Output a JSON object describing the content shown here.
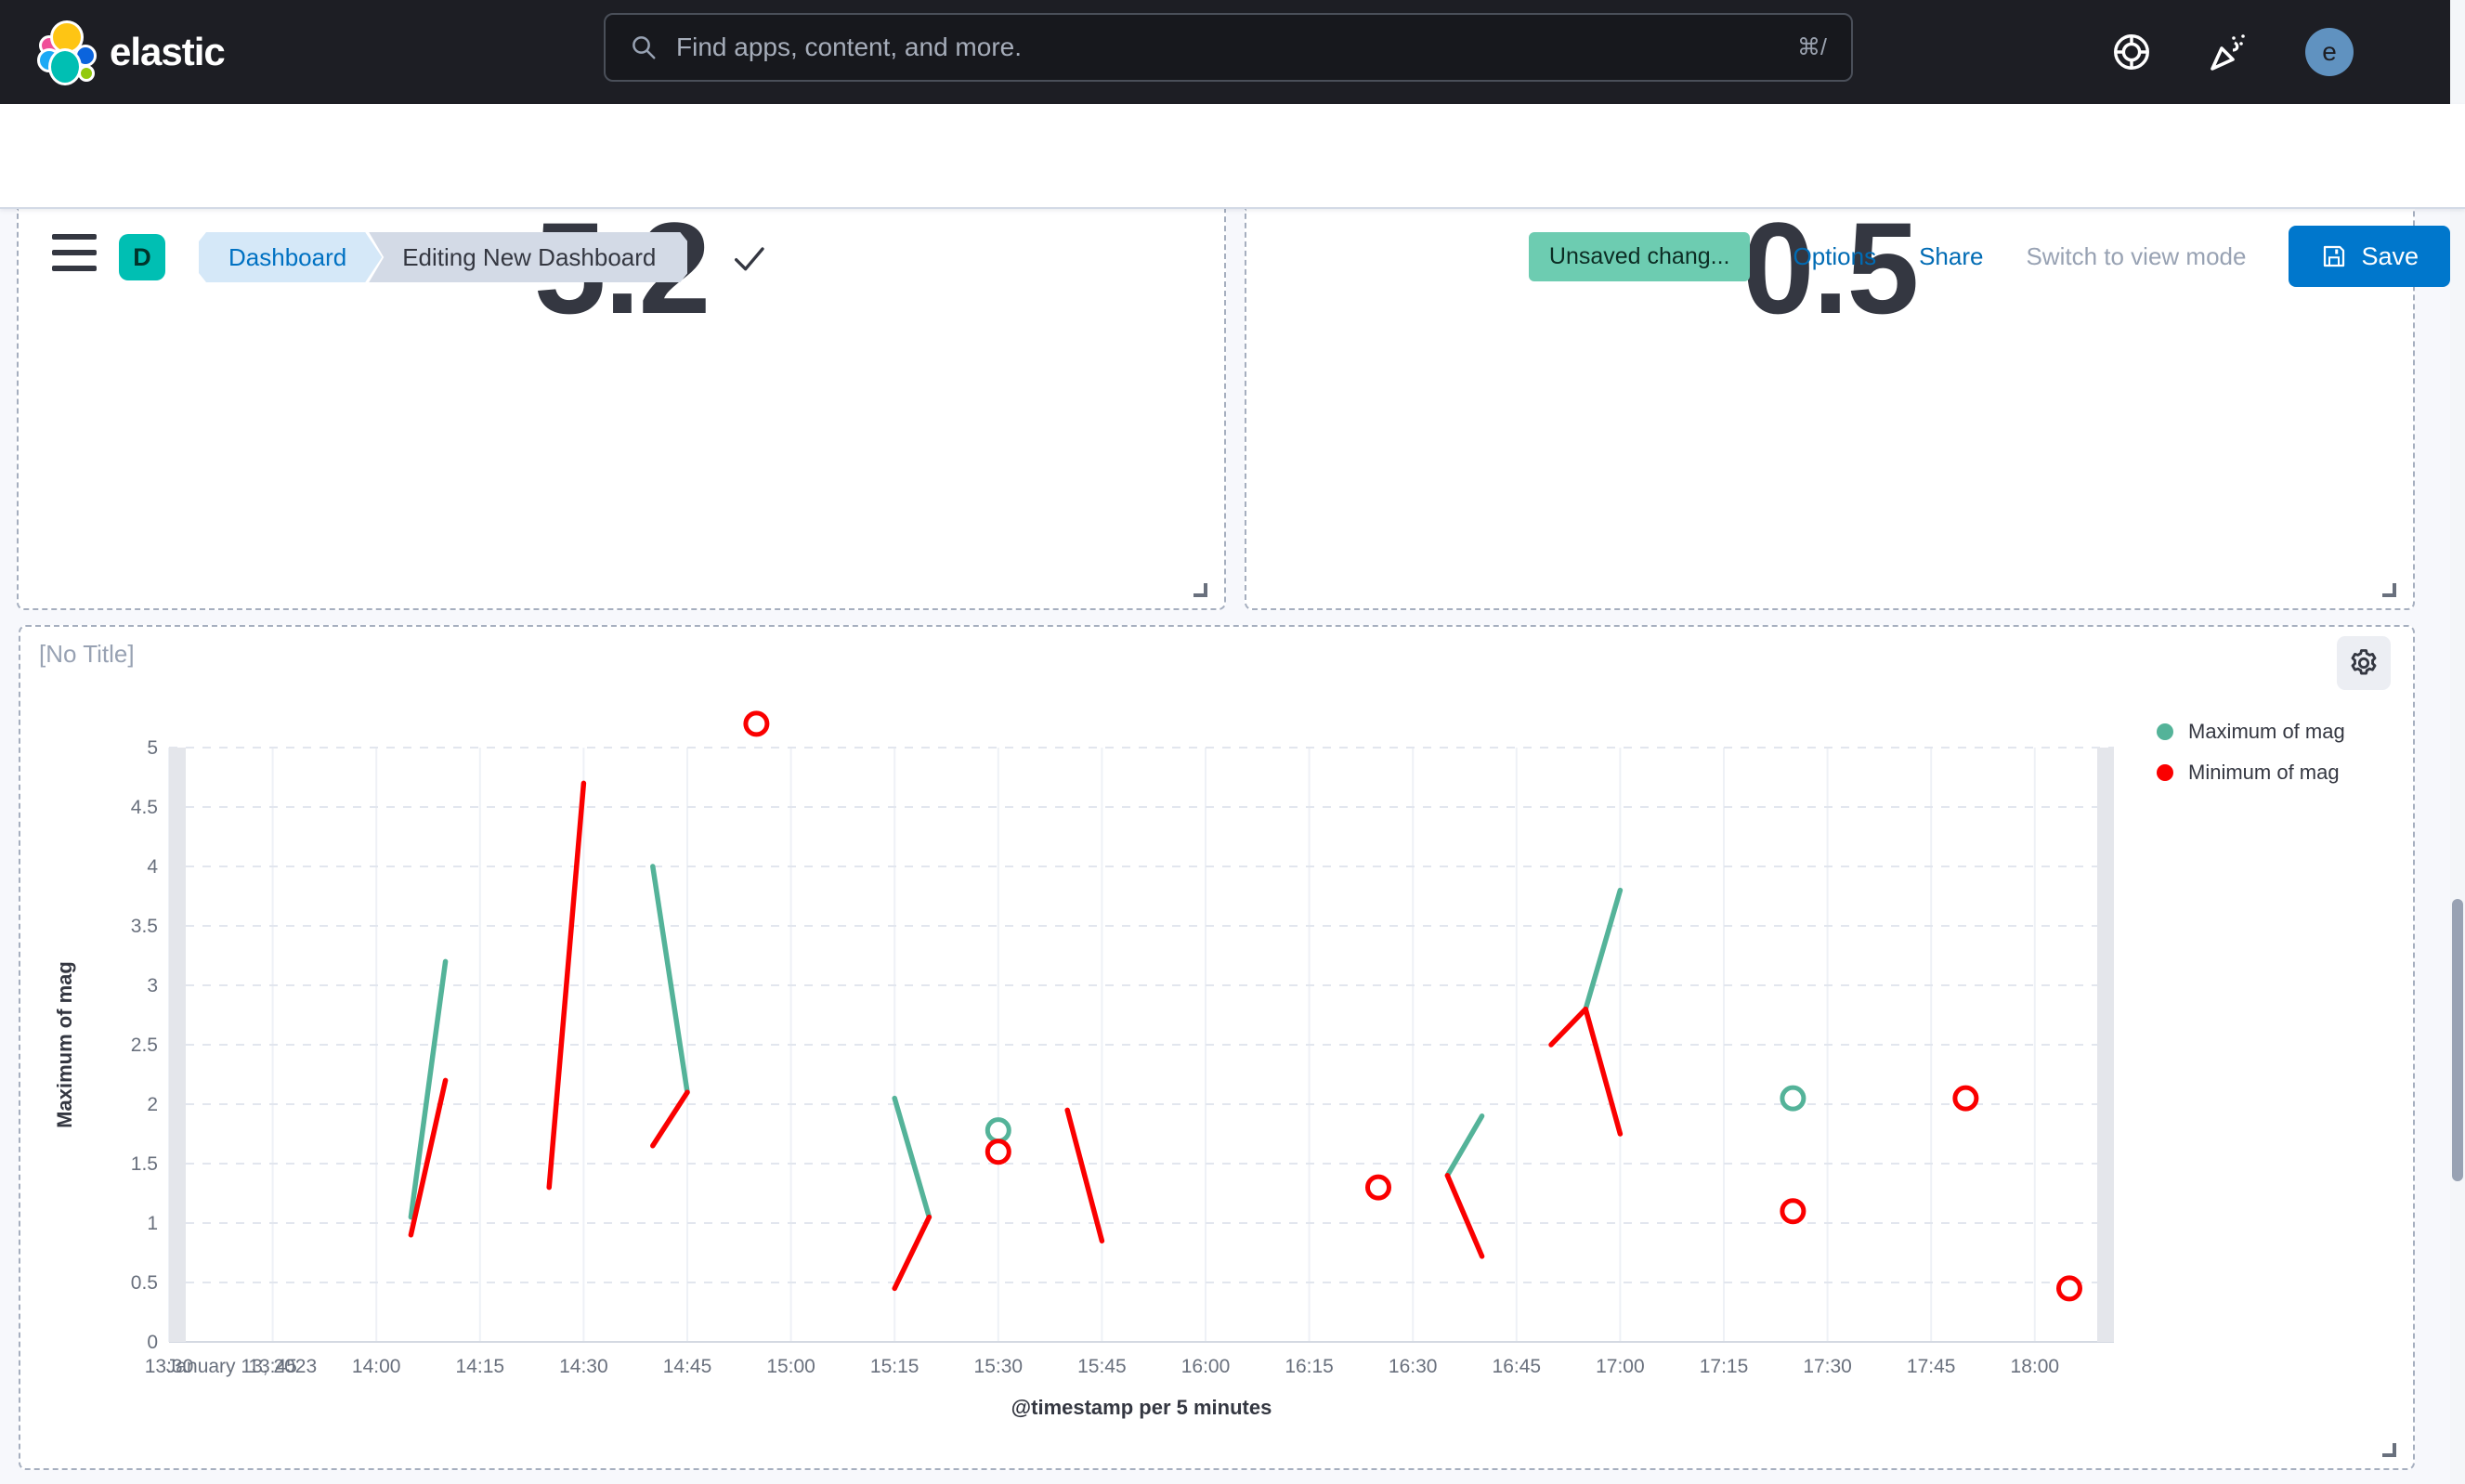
{
  "header": {
    "brand": "elastic",
    "search": {
      "placeholder": "Find apps, content, and more.",
      "shortcut": "⌘/"
    },
    "icons": [
      "help-icon",
      "news-icon"
    ],
    "avatar_initial": "e"
  },
  "toolbar": {
    "app_initial": "D",
    "breadcrumbs": [
      "Dashboard",
      "Editing New Dashboard"
    ],
    "unsaved_badge": "Unsaved chang...",
    "options_label": "Options",
    "share_label": "Share",
    "view_mode_label": "Switch to view mode",
    "save_label": "Save"
  },
  "panels": {
    "metric_left": {
      "value": "5.2"
    },
    "metric_right": {
      "value": "0.5"
    },
    "chart_title": "[No Title]"
  },
  "colors": {
    "series_max": "#54B399",
    "series_min": "#FA0000",
    "badge_bg": "#6DCCB1",
    "primary_button": "#0077CC",
    "axis_text": "#69707D",
    "dark_text": "#343741"
  },
  "chart_data": {
    "type": "line",
    "title": "[No Title]",
    "xlabel": "@timestamp per 5 minutes",
    "ylabel": "Maximum of mag",
    "ylim": [
      0,
      5
    ],
    "ytick_step": 0.5,
    "grid": "horizontal-dashed",
    "legend_position": "right",
    "x_date_label": "January 13, 2023",
    "x_tick_labels": [
      "13:30",
      "13:45",
      "14:00",
      "14:15",
      "14:30",
      "14:45",
      "15:00",
      "15:15",
      "15:30",
      "15:45",
      "16:00",
      "16:15",
      "16:30",
      "16:45",
      "17:00",
      "17:15",
      "17:30",
      "17:45",
      "18:00"
    ],
    "series": [
      {
        "name": "Maximum of mag",
        "color": "#54B399",
        "segments": [
          [
            [
              "14:05",
              1.05
            ],
            [
              "14:10",
              3.2
            ]
          ],
          [
            [
              "14:40",
              4.0
            ],
            [
              "14:45",
              2.1
            ]
          ],
          [
            [
              "15:15",
              2.05
            ],
            [
              "15:20",
              1.05
            ]
          ],
          [
            [
              "16:35",
              1.4
            ],
            [
              "16:40",
              1.9
            ]
          ],
          [
            [
              "16:55",
              2.8
            ],
            [
              "17:00",
              3.8
            ]
          ]
        ],
        "isolated_points": [
          [
            "15:30",
            1.78
          ],
          [
            "17:25",
            2.05
          ]
        ]
      },
      {
        "name": "Minimum of mag",
        "color": "#FA0000",
        "segments": [
          [
            [
              "14:05",
              0.9
            ],
            [
              "14:10",
              2.2
            ]
          ],
          [
            [
              "14:25",
              1.3
            ],
            [
              "14:30",
              4.7
            ]
          ],
          [
            [
              "14:40",
              1.65
            ],
            [
              "14:45",
              2.1
            ]
          ],
          [
            [
              "15:15",
              0.45
            ],
            [
              "15:20",
              1.05
            ]
          ],
          [
            [
              "15:40",
              1.95
            ],
            [
              "15:45",
              0.85
            ]
          ],
          [
            [
              "16:35",
              1.4
            ],
            [
              "16:40",
              0.72
            ]
          ],
          [
            [
              "16:50",
              2.5
            ],
            [
              "16:55",
              2.8
            ],
            [
              "17:00",
              1.75
            ]
          ]
        ],
        "isolated_points": [
          [
            "14:55",
            5.2
          ],
          [
            "15:30",
            1.6
          ],
          [
            "16:25",
            1.3
          ],
          [
            "17:25",
            1.1
          ],
          [
            "17:50",
            2.05
          ],
          [
            "18:05",
            0.45
          ]
        ]
      }
    ]
  }
}
